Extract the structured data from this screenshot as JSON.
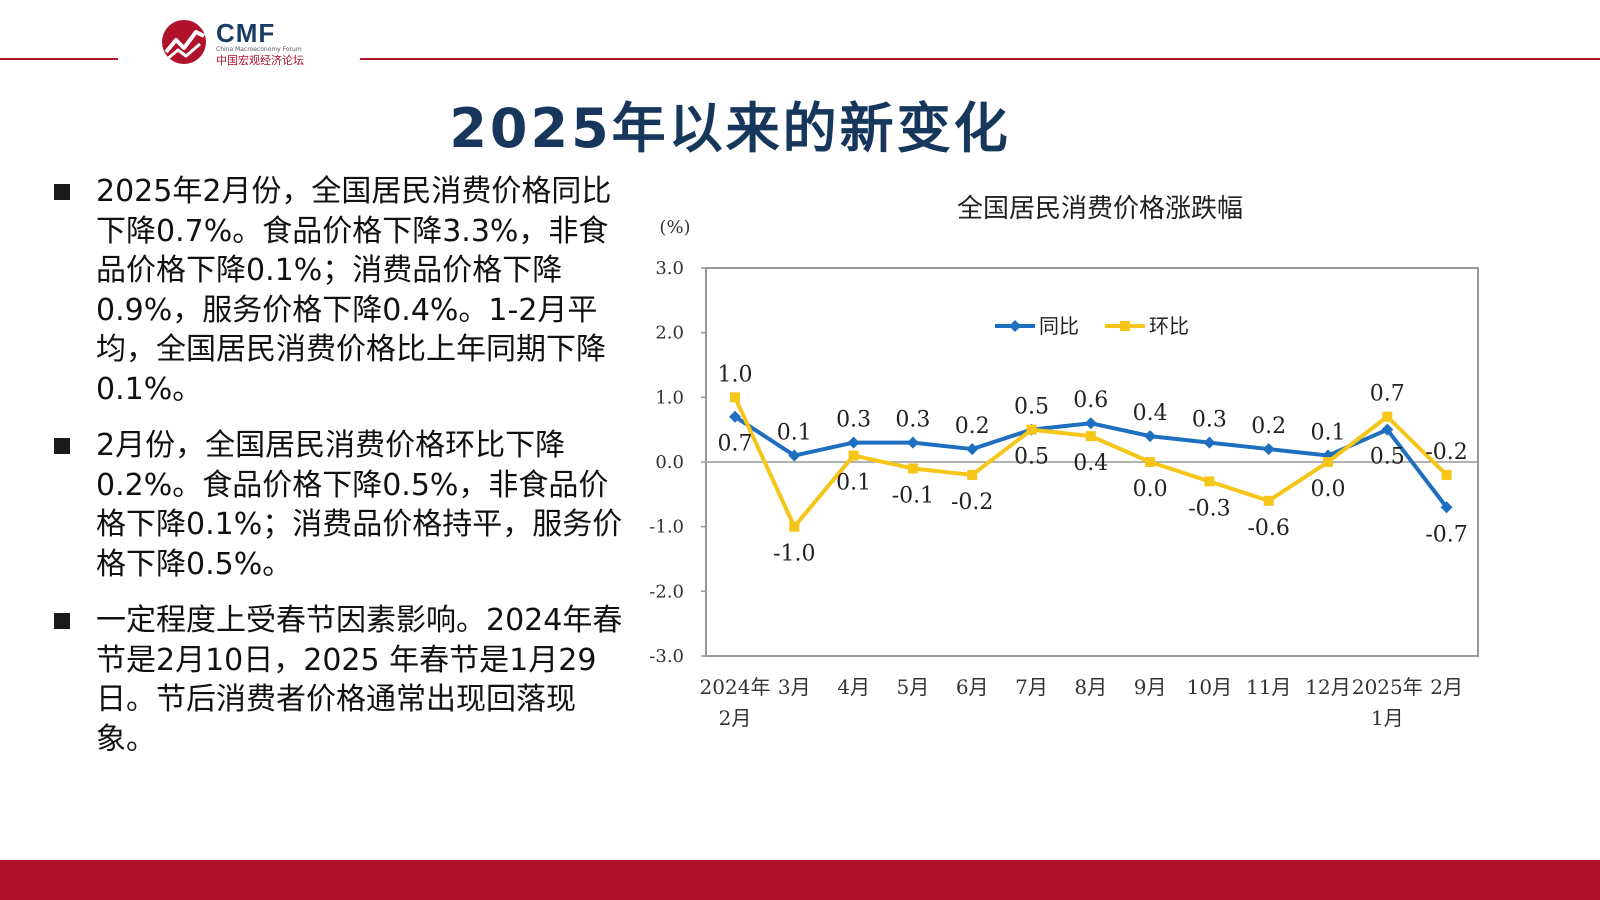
{
  "header": {
    "logo_text": "CMF",
    "logo_sub_en": "China Macroeconomy Forum",
    "logo_sub_cn": "中国宏观经济论坛",
    "title": "2025年以来的新变化"
  },
  "bullets": [
    "2025年2月份，全国居民消费价格同比下降0.7%。食品价格下降3.3%，非食品价格下降0.1%；消费品价格下降0.9%，服务价格下降0.4%。1-2月平均，全国居民消费价格比上年同期下降0.1%。",
    "2月份，全国居民消费价格环比下降0.2%。食品价格下降0.5%，非食品价格下降0.1%；消费品价格持平，服务价格下降0.5%。",
    "一定程度上受春节因素影响。2024年春节是2月10日，2025 年春节是1月29日。节后消费者价格通常出现回落现象。"
  ],
  "colors": {
    "brand_red": "#b0122b",
    "title_navy": "#16365c",
    "series_yoy": "#1f6fc0",
    "series_mom": "#f5c518"
  },
  "chart_data": {
    "type": "line",
    "title": "全国居民消费价格涨跌幅",
    "unit_label": "(%)",
    "categories": [
      [
        "2024年",
        "2月"
      ],
      [
        "3月"
      ],
      [
        "4月"
      ],
      [
        "5月"
      ],
      [
        "6月"
      ],
      [
        "7月"
      ],
      [
        "8月"
      ],
      [
        "9月"
      ],
      [
        "10月"
      ],
      [
        "11月"
      ],
      [
        "12月"
      ],
      [
        "2025年",
        "1月"
      ],
      [
        "2月"
      ]
    ],
    "ylim": [
      -3.0,
      3.0
    ],
    "yticks": [
      "3.0",
      "2.0",
      "1.0",
      "0.0",
      "-1.0",
      "-2.0",
      "-3.0"
    ],
    "ytick_values": [
      3,
      2,
      1,
      0,
      -1,
      -2,
      -3
    ],
    "legend_position": "top-center",
    "series": [
      {
        "name": "同比",
        "color": "#1f6fc0",
        "marker": "diamond",
        "values": [
          0.7,
          0.1,
          0.3,
          0.3,
          0.2,
          0.5,
          0.6,
          0.4,
          0.3,
          0.2,
          0.1,
          0.5,
          -0.7
        ],
        "labels": [
          "0.7",
          "0.1",
          "0.3",
          "0.3",
          "0.2",
          "0.5",
          "0.6",
          "0.4",
          "0.3",
          "0.2",
          "0.1",
          "0.5",
          "-0.7"
        ],
        "label_side": [
          "below",
          "above",
          "above",
          "above",
          "above",
          "above",
          "above",
          "above",
          "above",
          "above",
          "above",
          "below",
          "below"
        ]
      },
      {
        "name": "环比",
        "color": "#f5c518",
        "marker": "square",
        "values": [
          1.0,
          -1.0,
          0.1,
          -0.1,
          -0.2,
          0.5,
          0.4,
          0.0,
          -0.3,
          -0.6,
          0.0,
          0.7,
          -0.2
        ],
        "labels": [
          "1.0",
          "-1.0",
          "0.1",
          "-0.1",
          "-0.2",
          "0.5",
          "0.4",
          "0.0",
          "-0.3",
          "-0.6",
          "0.0",
          "0.7",
          "-0.2"
        ],
        "label_side": [
          "above",
          "below",
          "below",
          "below",
          "below",
          "below",
          "below",
          "below",
          "below",
          "below",
          "below",
          "above",
          "above"
        ]
      }
    ]
  }
}
